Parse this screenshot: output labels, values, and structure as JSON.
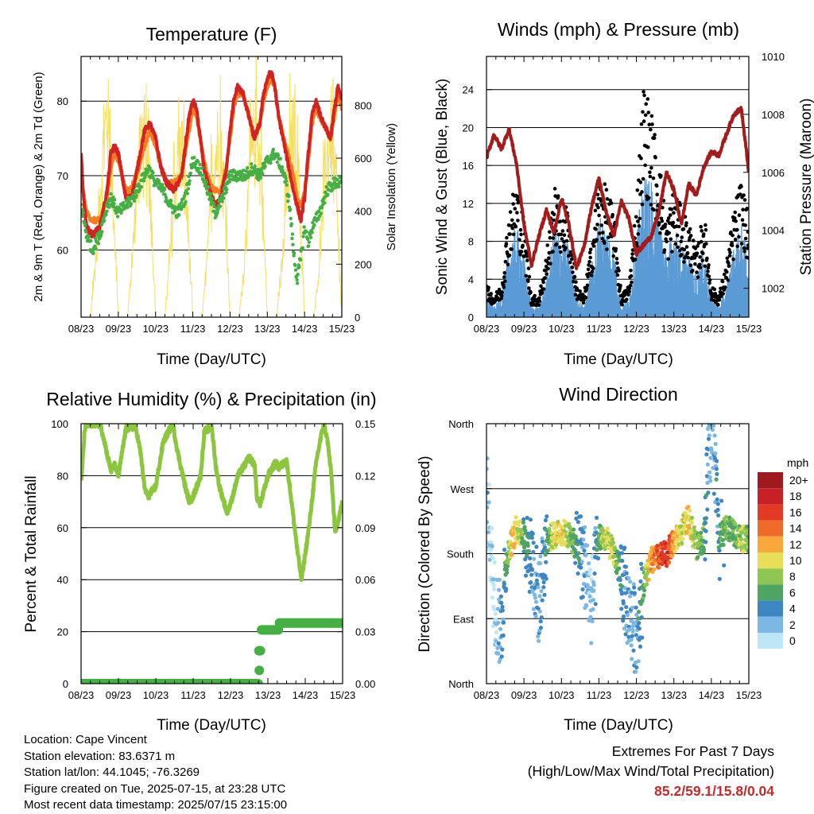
{
  "chart_data": [
    {
      "type": "line",
      "title": "Temperature (F)",
      "xlabel": "Time (Day/UTC)",
      "ylabel": "2m & 9m T (Red, Orange) & 2m Td (Green)",
      "y2label": "Solar Insolation (Yellow)",
      "x_ticks": [
        "08/23",
        "09/23",
        "10/23",
        "11/23",
        "12/23",
        "13/23",
        "14/23",
        "15/23"
      ],
      "ylim": [
        51,
        86
      ],
      "y_ticks": [
        60,
        70,
        80
      ],
      "y2lim": [
        0,
        984
      ],
      "y2_ticks": [
        0,
        200,
        400,
        600,
        800
      ],
      "grid": "horizontal at major ticks",
      "colors": {
        "t2m": "#d32222",
        "t9m": "#f37c22",
        "td2m": "#44b044",
        "solar": "#f7df5f"
      },
      "series": [
        {
          "name": "2m T (Red)",
          "x": [
            0,
            0.05,
            0.15,
            0.3,
            0.5,
            0.7,
            0.8,
            0.9,
            1.0,
            1.1,
            1.2,
            1.3,
            1.4,
            1.55,
            1.7,
            1.85,
            2.0,
            2.15,
            2.3,
            2.5,
            2.7,
            2.8,
            2.9,
            3.0,
            3.1,
            3.2,
            3.3,
            3.45,
            3.6,
            3.75,
            3.9,
            4.0,
            4.1,
            4.2,
            4.35,
            4.5,
            4.65,
            4.8,
            4.9,
            5.0,
            5.1,
            5.2,
            5.3,
            5.5,
            5.7,
            5.8,
            5.9,
            6.0,
            6.1,
            6.2,
            6.3,
            6.5,
            6.7,
            6.8,
            6.9,
            7.0
          ],
          "values": [
            73,
            68,
            63,
            62,
            63,
            68,
            73,
            74,
            73,
            70,
            67,
            67,
            68,
            72,
            76,
            77,
            75,
            71,
            69,
            68,
            70,
            74,
            78,
            80,
            79,
            75,
            71,
            68,
            66,
            67,
            71,
            76,
            80,
            82,
            81,
            78,
            75,
            77,
            81,
            83,
            84,
            82,
            78,
            73,
            68,
            66,
            64,
            67,
            73,
            78,
            80,
            77,
            75,
            79,
            82,
            80
          ]
        },
        {
          "name": "9m T (Orange)",
          "x": [
            0,
            0.05,
            0.15,
            0.3,
            0.5,
            0.7,
            0.8,
            0.9,
            1.0,
            1.1,
            1.2,
            1.3,
            1.4,
            1.55,
            1.7,
            1.85,
            2.0,
            2.15,
            2.3,
            2.5,
            2.7,
            2.8,
            2.9,
            3.0,
            3.1,
            3.2,
            3.3,
            3.45,
            3.6,
            3.75,
            3.9,
            4.0,
            4.1,
            4.2,
            4.35,
            4.5,
            4.65,
            4.8,
            4.9,
            5.0,
            5.1,
            5.2,
            5.3,
            5.5,
            5.7,
            5.8,
            5.9,
            6.0,
            6.1,
            6.2,
            6.3,
            6.5,
            6.7,
            6.8,
            6.9,
            7.0
          ],
          "values": [
            72,
            68,
            65,
            64,
            64,
            67,
            71,
            73,
            72,
            70,
            68,
            68,
            69,
            71,
            74,
            76,
            74,
            71,
            69,
            69,
            70,
            73,
            76,
            79,
            78,
            75,
            72,
            69,
            68,
            68,
            71,
            75,
            79,
            81,
            81,
            78,
            75,
            77,
            80,
            82,
            83,
            82,
            78,
            74,
            70,
            67,
            66,
            68,
            72,
            77,
            79,
            77,
            75,
            78,
            81,
            79
          ]
        },
        {
          "name": "2m Td (Green)",
          "x": [
            0,
            0.15,
            0.3,
            0.5,
            0.7,
            0.8,
            0.9,
            1.0,
            1.2,
            1.4,
            1.6,
            1.8,
            2.0,
            2.2,
            2.4,
            2.6,
            2.8,
            3.0,
            3.2,
            3.4,
            3.6,
            3.8,
            4.0,
            4.2,
            4.4,
            4.6,
            4.8,
            5.0,
            5.2,
            5.4,
            5.5,
            5.6,
            5.7,
            5.8,
            5.9,
            6.0,
            6.1,
            6.2,
            6.4,
            6.6,
            6.8,
            7.0
          ],
          "values": [
            66,
            62,
            60,
            62,
            66,
            67,
            66,
            65,
            66,
            67,
            69,
            71,
            69,
            68,
            66,
            65,
            67,
            72,
            71,
            68,
            65,
            67,
            70,
            70,
            70,
            71,
            70,
            72,
            73,
            71,
            69,
            66,
            60,
            56,
            59,
            63,
            61,
            63,
            65,
            68,
            69,
            69
          ]
        },
        {
          "name": "Solar Insolation (Yellow)",
          "axis": "y2",
          "x": [
            0,
            0.25,
            0.4,
            0.55,
            0.7,
            0.85,
            1.0,
            1.25,
            1.4,
            1.55,
            1.7,
            1.85,
            2.0,
            2.25,
            2.4,
            2.55,
            2.7,
            2.85,
            3.0,
            3.25,
            3.4,
            3.55,
            3.7,
            3.85,
            4.0,
            4.25,
            4.4,
            4.55,
            4.7,
            4.85,
            5.0,
            5.25,
            5.4,
            5.55,
            5.7,
            5.85,
            6.0,
            6.25,
            6.4,
            6.55,
            6.7,
            6.85,
            7.0
          ],
          "values": [
            0,
            0,
            300,
            700,
            990,
            600,
            0,
            0,
            350,
            750,
            800,
            650,
            0,
            0,
            300,
            700,
            820,
            500,
            0,
            0,
            300,
            720,
            860,
            600,
            0,
            0,
            300,
            740,
            900,
            650,
            0,
            0,
            250,
            650,
            880,
            600,
            0,
            0,
            250,
            680,
            900,
            550,
            0
          ]
        }
      ]
    },
    {
      "type": "scatter",
      "title": "Winds (mph) & Pressure (mb)",
      "xlabel": "Time (Day/UTC)",
      "ylabel": "Sonic Wind & Gust (Blue, Black)",
      "y2label": "Station Pressure (Maroon)",
      "x_ticks": [
        "08/23",
        "09/23",
        "10/23",
        "11/23",
        "12/23",
        "13/23",
        "14/23",
        "15/23"
      ],
      "ylim": [
        0,
        27.5
      ],
      "y_ticks": [
        0,
        4,
        8,
        12,
        16,
        20,
        24
      ],
      "y2lim": [
        1001,
        1010
      ],
      "y2_ticks": [
        1002,
        1004,
        1006,
        1008,
        1010
      ],
      "grid": "horizontal at major ticks",
      "colors": {
        "wind": "#5b9bd5",
        "gust": "#000000",
        "pressure": "#a31c1c"
      },
      "series": [
        {
          "name": "Sonic Wind (Blue)",
          "x": [
            0,
            0.2,
            0.4,
            0.6,
            0.8,
            1.0,
            1.2,
            1.4,
            1.6,
            1.8,
            2.0,
            2.2,
            2.4,
            2.6,
            2.8,
            3.0,
            3.2,
            3.4,
            3.6,
            3.8,
            4.0,
            4.2,
            4.4,
            4.6,
            4.8,
            5.0,
            5.2,
            5.4,
            5.6,
            5.8,
            6.0,
            6.2,
            6.4,
            6.6,
            6.8,
            7.0
          ],
          "values": [
            2,
            1,
            2,
            7,
            9,
            6,
            1,
            1,
            4,
            9,
            8,
            7,
            2,
            1,
            5,
            10,
            9,
            7,
            1,
            2,
            8,
            14,
            13,
            11,
            6,
            9,
            7,
            6,
            4,
            7,
            2,
            1,
            3,
            7,
            9,
            6
          ]
        },
        {
          "name": "Gust (Black)",
          "x": [
            0,
            0.2,
            0.4,
            0.6,
            0.8,
            1.0,
            1.2,
            1.4,
            1.6,
            1.8,
            2.0,
            2.2,
            2.4,
            2.6,
            2.8,
            3.0,
            3.2,
            3.4,
            3.6,
            3.8,
            4.0,
            4.2,
            4.4,
            4.6,
            4.8,
            5.0,
            5.2,
            5.4,
            5.6,
            5.8,
            6.0,
            6.2,
            6.4,
            6.6,
            6.8,
            7.0
          ],
          "values": [
            3,
            2,
            3,
            10,
            13,
            9,
            2,
            2,
            6,
            12,
            11,
            10,
            3,
            2,
            7,
            13,
            12,
            10,
            2,
            3,
            11,
            22,
            19,
            15,
            9,
            12,
            10,
            9,
            6,
            10,
            3,
            2,
            5,
            10,
            13,
            9
          ]
        },
        {
          "name": "Station Pressure (Maroon)",
          "axis": "y2",
          "x": [
            0,
            0.2,
            0.4,
            0.6,
            0.8,
            1.0,
            1.2,
            1.4,
            1.6,
            1.8,
            2.0,
            2.2,
            2.4,
            2.6,
            2.8,
            3.0,
            3.2,
            3.4,
            3.6,
            3.8,
            4.0,
            4.2,
            4.4,
            4.6,
            4.8,
            5.0,
            5.2,
            5.4,
            5.6,
            5.8,
            6.0,
            6.2,
            6.4,
            6.6,
            6.8,
            7.0
          ],
          "values": [
            1006.5,
            1007.3,
            1006.8,
            1007.5,
            1006.3,
            1004.2,
            1002.8,
            1003.8,
            1004.7,
            1003.9,
            1005.1,
            1004.2,
            1002.7,
            1003.4,
            1004.8,
            1005.8,
            1004.6,
            1003.8,
            1005.0,
            1004.4,
            1003.2,
            1003.5,
            1003.8,
            1004.6,
            1006.0,
            1005.4,
            1004.2,
            1005.6,
            1005.2,
            1006.2,
            1006.7,
            1006.6,
            1007.3,
            1008.0,
            1008.2,
            1006.0
          ]
        }
      ]
    },
    {
      "type": "line",
      "title": "Relative Humidity (%) & Precipitation (in)",
      "xlabel": "Time (Day/UTC)",
      "ylabel": "Percent & Total Rainfall",
      "x_ticks": [
        "08/23",
        "09/23",
        "10/23",
        "11/23",
        "12/23",
        "13/23",
        "14/23",
        "15/23"
      ],
      "ylim": [
        0,
        100
      ],
      "y_ticks": [
        0,
        20,
        40,
        60,
        80,
        100
      ],
      "y2lim": [
        0,
        0.15
      ],
      "y2_ticks": [
        "0.00",
        "0.03",
        "0.06",
        "0.09",
        "0.12",
        "0.15"
      ],
      "grid": "horizontal at major ticks",
      "colors": {
        "rh": "#8cc63f",
        "precip": "#44b044"
      },
      "series": [
        {
          "name": "Relative Humidity",
          "x": [
            0,
            0.1,
            0.2,
            0.5,
            0.6,
            0.7,
            0.8,
            0.9,
            1.0,
            1.2,
            1.45,
            1.5,
            1.6,
            1.7,
            1.8,
            2.0,
            2.2,
            2.45,
            2.5,
            2.6,
            2.8,
            2.9,
            3.0,
            3.2,
            3.3,
            3.5,
            3.6,
            3.7,
            3.9,
            4.0,
            4.2,
            4.5,
            4.65,
            4.7,
            4.8,
            5.0,
            5.2,
            5.3,
            5.5,
            5.6,
            5.7,
            5.8,
            5.9,
            6.1,
            6.3,
            6.45,
            6.5,
            6.6,
            6.7,
            6.8,
            7.0
          ],
          "values": [
            77,
            98,
            100,
            100,
            95,
            88,
            82,
            84,
            80,
            98,
            99,
            96,
            88,
            75,
            72,
            76,
            93,
            100,
            96,
            88,
            75,
            70,
            72,
            80,
            97,
            99,
            84,
            76,
            66,
            69,
            80,
            87,
            84,
            72,
            69,
            80,
            85,
            83,
            86,
            74,
            62,
            50,
            40,
            60,
            86,
            97,
            100,
            93,
            80,
            58,
            70
          ]
        },
        {
          "name": "Total Precipitation",
          "axis": "y2",
          "x": [
            0,
            1,
            2,
            3,
            4,
            4.75,
            4.8,
            4.81,
            5.0,
            5.1,
            5.3,
            5.31,
            6.0,
            7.0
          ],
          "values": [
            0,
            0,
            0,
            0,
            0,
            0,
            0.019,
            0.031,
            0.031,
            0.031,
            0.031,
            0.035,
            0.035,
            0.035
          ]
        }
      ]
    },
    {
      "type": "scatter",
      "title": "Wind Direction",
      "xlabel": "Time (Day/UTC)",
      "ylabel": "Direction (Colored By Speed)",
      "x_ticks": [
        "08/23",
        "09/23",
        "10/23",
        "11/23",
        "12/23",
        "13/23",
        "14/23",
        "15/23"
      ],
      "y_ticks": [
        "North",
        "East",
        "South",
        "West",
        "North"
      ],
      "ylim": [
        0,
        360
      ],
      "grid": "horizontal at major ticks",
      "legend": {
        "title": "mph",
        "labels": [
          "20+",
          "18",
          "16",
          "14",
          "12",
          "10",
          "8",
          "6",
          "4",
          "2",
          "0"
        ],
        "colors": [
          "#9e1a1e",
          "#c82027",
          "#e23a25",
          "#f06a2a",
          "#f9a93c",
          "#e8de5a",
          "#8fc651",
          "#4ea462",
          "#3f86c4",
          "#7db8e4",
          "#bde6f7"
        ]
      },
      "series": [
        {
          "name": "Wind Direction",
          "x": [
            0,
            0.1,
            0.2,
            0.3,
            0.4,
            0.5,
            0.6,
            0.7,
            0.8,
            0.9,
            1.0,
            1.2,
            1.4,
            1.6,
            1.8,
            2.0,
            2.2,
            2.4,
            2.6,
            2.8,
            3.0,
            3.2,
            3.4,
            3.6,
            3.8,
            4.0,
            4.2,
            4.4,
            4.6,
            4.8,
            5.0,
            5.2,
            5.4,
            5.6,
            5.8,
            5.9,
            6.0,
            6.1,
            6.2,
            6.4,
            6.6,
            6.8,
            7.0
          ],
          "values": [
            270,
            200,
            120,
            90,
            80,
            160,
            185,
            200,
            215,
            210,
            205,
            180,
            110,
            200,
            205,
            210,
            205,
            190,
            170,
            110,
            205,
            200,
            180,
            150,
            100,
            70,
            140,
            170,
            175,
            180,
            195,
            210,
            230,
            190,
            200,
            290,
            350,
            310,
            200,
            215,
            210,
            200,
            200
          ],
          "speeds": [
            2,
            1,
            1,
            2,
            3,
            5,
            8,
            12,
            10,
            9,
            6,
            4,
            2,
            5,
            9,
            11,
            8,
            5,
            3,
            1,
            6,
            10,
            9,
            4,
            2,
            3,
            6,
            13,
            15,
            17,
            12,
            9,
            11,
            8,
            6,
            4,
            2,
            3,
            5,
            7,
            6,
            9,
            8
          ]
        }
      ]
    }
  ],
  "footer": {
    "location": "Location: Cape Vincent",
    "elevation": "Station elevation: 83.6371 m",
    "latlon": "Station lat/lon: 44.1045; -76.3269",
    "created": "Figure created on Tue, 2025-07-15, at 23:28 UTC",
    "recent": "Most recent data timestamp: 2025/07/15 23:15:00",
    "extremes_title": "Extremes For Past 7 Days",
    "extremes_desc": "(High/Low/Max Wind/Total Precipitation)",
    "extremes_values": "85.2/59.1/15.8/0.04"
  }
}
